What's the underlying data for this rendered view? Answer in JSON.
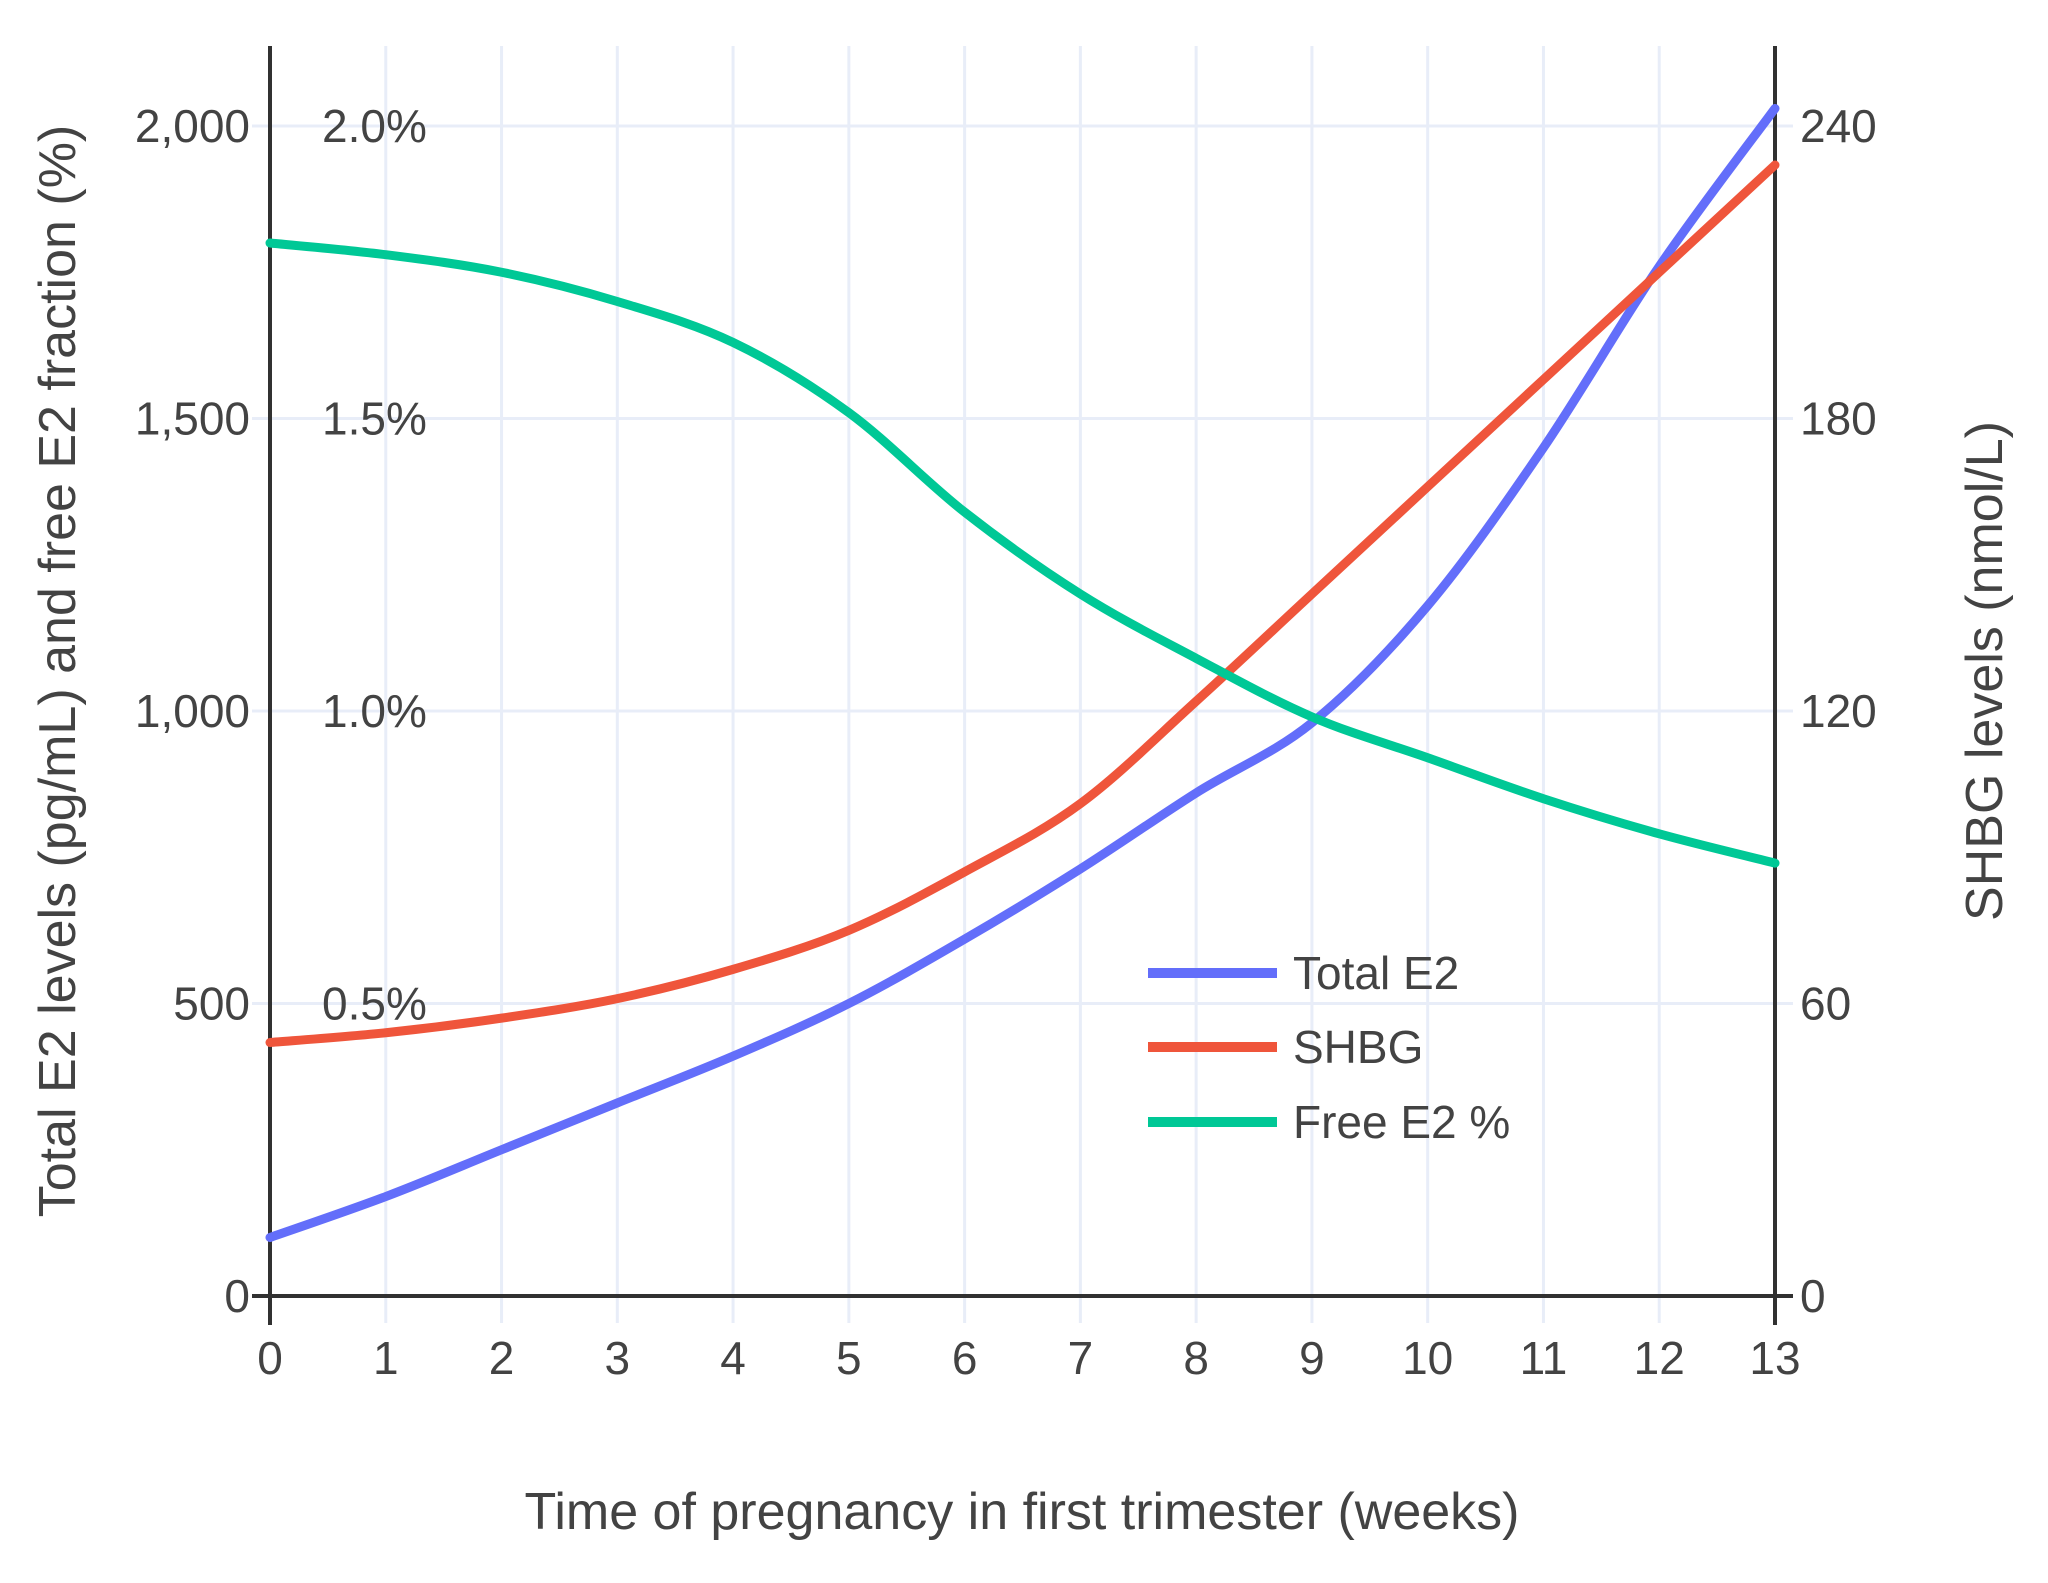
{
  "figure": {
    "xlabel": "Time of pregnancy in first trimester (weeks)",
    "ylabel_left": "Total E2 levels (pg/mL) and free E2 fraction (%)",
    "ylabel_right": "SHBG levels (nmol/L)"
  },
  "axes": {
    "x_ticks": [
      "0",
      "1",
      "2",
      "3",
      "4",
      "5",
      "6",
      "7",
      "8",
      "9",
      "10",
      "11",
      "12",
      "13"
    ],
    "left_ticks": [
      {
        "value": 2000,
        "label": "2,000"
      },
      {
        "value": 1500,
        "label": "1,500"
      },
      {
        "value": 1000,
        "label": "1,000"
      },
      {
        "value": 500,
        "label": "500"
      },
      {
        "value": 0,
        "label": "0"
      }
    ],
    "left_percent_labels": [
      {
        "value": 2000,
        "label": "2.0%"
      },
      {
        "value": 1500,
        "label": "1.5%"
      },
      {
        "value": 1000,
        "label": "1.0%"
      },
      {
        "value": 500,
        "label": "0.5%"
      }
    ],
    "right_ticks": [
      {
        "value": 240,
        "label": "240"
      },
      {
        "value": 180,
        "label": "180"
      },
      {
        "value": 120,
        "label": "120"
      },
      {
        "value": 60,
        "label": "60"
      },
      {
        "value": 0,
        "label": "0"
      }
    ]
  },
  "legend": {
    "items": [
      {
        "label": "Total E2",
        "color": "#636EFA"
      },
      {
        "label": "SHBG",
        "color": "#EF553B"
      },
      {
        "label": "Free E2 %",
        "color": "#00C896"
      }
    ]
  },
  "colors": {
    "grid": "#E8EDF8",
    "axis_line": "#313131",
    "text": "#434343",
    "background": "#FFFFFF"
  },
  "chart_data": {
    "type": "line",
    "title": "",
    "xlabel": "Time of pregnancy in first trimester (weeks)",
    "ylabel": "Total E2 levels (pg/mL) and free E2 fraction (%)",
    "ylabel_right": "SHBG levels (nmol/L)",
    "x": [
      0,
      1,
      2,
      3,
      4,
      5,
      6,
      7,
      8,
      9,
      10,
      11,
      12,
      13
    ],
    "grid": true,
    "legend_position": "inside-lower-right",
    "axis_ranges": {
      "x_weeks": [
        0,
        13
      ],
      "left_pg_ml": [
        0,
        2138
      ],
      "left_percent": [
        0,
        2.138
      ],
      "right_nmol_l": [
        0,
        256.5
      ]
    },
    "series": [
      {
        "name": "Total E2",
        "axis": "left",
        "units": "pg/mL",
        "color": "#636EFA",
        "values": [
          100,
          170,
          250,
          330,
          410,
          500,
          610,
          730,
          860,
          980,
          1180,
          1450,
          1760,
          2030
        ]
      },
      {
        "name": "SHBG",
        "axis": "right",
        "units": "nmol/L",
        "color": "#EF553B",
        "values": [
          52,
          54,
          57,
          61,
          67,
          75,
          87,
          101,
          122,
          144,
          166,
          188,
          210,
          232
        ]
      },
      {
        "name": "Free E2 %",
        "axis": "left_percent",
        "units": "%",
        "color": "#00C896",
        "values": [
          1.8,
          1.78,
          1.75,
          1.7,
          1.63,
          1.51,
          1.34,
          1.2,
          1.09,
          0.99,
          0.92,
          0.85,
          0.79,
          0.74
        ]
      }
    ]
  }
}
